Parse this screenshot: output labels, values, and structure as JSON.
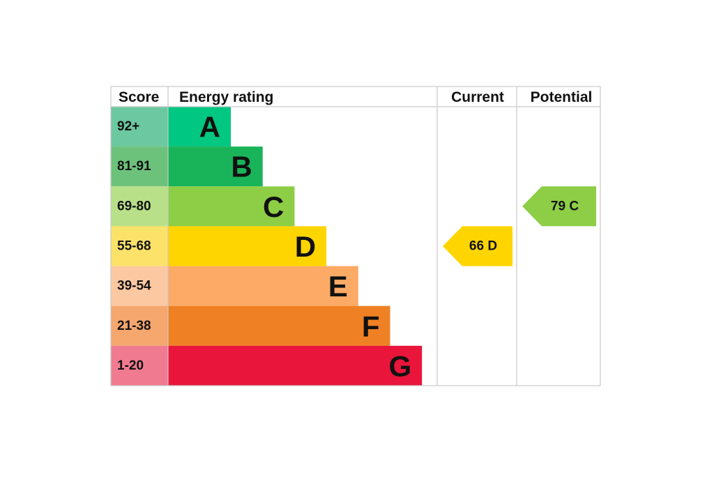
{
  "chart_data": {
    "type": "bar",
    "headers": {
      "score": "Score",
      "rating": "Energy rating",
      "current": "Current",
      "potential": "Potential"
    },
    "bands": [
      {
        "score": "92+",
        "letter": "A",
        "score_color": "#6cc8a0",
        "bar_color": "#00c781"
      },
      {
        "score": "81-91",
        "letter": "B",
        "score_color": "#6cc27b",
        "bar_color": "#19b459"
      },
      {
        "score": "69-80",
        "letter": "C",
        "score_color": "#b8e089",
        "bar_color": "#8dce46"
      },
      {
        "score": "55-68",
        "letter": "D",
        "score_color": "#fde26a",
        "bar_color": "#ffd500"
      },
      {
        "score": "39-54",
        "letter": "E",
        "score_color": "#fcc8a2",
        "bar_color": "#fcaa65"
      },
      {
        "score": "21-38",
        "letter": "F",
        "score_color": "#f5a76e",
        "bar_color": "#ef8023"
      },
      {
        "score": "1-20",
        "letter": "G",
        "score_color": "#f07b90",
        "bar_color": "#e9153b"
      }
    ],
    "current": {
      "value": 66,
      "band": "D",
      "label": "66  D",
      "color": "#ffd500"
    },
    "potential": {
      "value": 79,
      "band": "C",
      "label": "79  C",
      "color": "#8dce46"
    }
  }
}
